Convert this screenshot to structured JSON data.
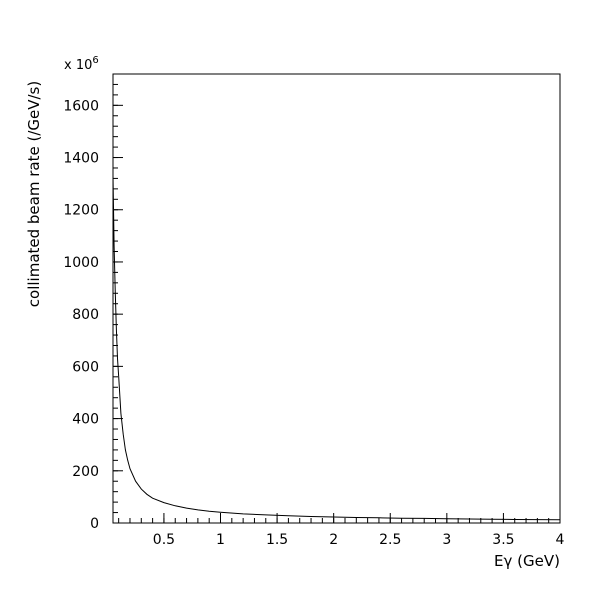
{
  "chart_data": {
    "type": "line",
    "title": "",
    "xlabel": "Eγ (GeV)",
    "ylabel": "collimated beam rate (/GeV/s)",
    "y_multiplier_label": {
      "base": "x 10",
      "exponent": "6"
    },
    "xlim": [
      0.05,
      4.0
    ],
    "ylim": [
      0,
      1720
    ],
    "x_ticks": [
      {
        "value": 0.5,
        "label": "0.5"
      },
      {
        "value": 1.0,
        "label": "1"
      },
      {
        "value": 1.5,
        "label": "1.5"
      },
      {
        "value": 2.0,
        "label": "2"
      },
      {
        "value": 2.5,
        "label": "2.5"
      },
      {
        "value": 3.0,
        "label": "3"
      },
      {
        "value": 3.5,
        "label": "3.5"
      },
      {
        "value": 4.0,
        "label": "4"
      }
    ],
    "y_ticks": [
      {
        "value": 0,
        "label": "0"
      },
      {
        "value": 200,
        "label": "200"
      },
      {
        "value": 400,
        "label": "400"
      },
      {
        "value": 600,
        "label": "600"
      },
      {
        "value": 800,
        "label": "800"
      },
      {
        "value": 1000,
        "label": "1000"
      },
      {
        "value": 1200,
        "label": "1200"
      },
      {
        "value": 1400,
        "label": "1400"
      },
      {
        "value": 1600,
        "label": "1600"
      }
    ],
    "x_minor_step": 0.1,
    "y_minor_step": 40,
    "grid": false,
    "series": [
      {
        "x": [
          0.05,
          0.06,
          0.07,
          0.08,
          0.09,
          0.1,
          0.12,
          0.14,
          0.16,
          0.18,
          0.2,
          0.25,
          0.3,
          0.35,
          0.4,
          0.5,
          0.6,
          0.7,
          0.8,
          0.9,
          1.0,
          1.2,
          1.4,
          1.6,
          1.8,
          2.0,
          2.2,
          2.4,
          2.6,
          2.8,
          3.0,
          3.2,
          3.4,
          3.6,
          3.8,
          4.0
        ],
        "y": [
          1330,
          1060,
          880,
          740,
          630,
          560,
          420,
          340,
          280,
          240,
          208,
          160,
          130,
          110,
          95,
          78,
          66,
          57,
          50,
          45,
          41,
          35,
          31,
          28,
          25,
          23,
          21,
          20,
          18.5,
          17.5,
          16.5,
          15.5,
          14.5,
          13.5,
          13,
          12.5
        ]
      }
    ]
  }
}
